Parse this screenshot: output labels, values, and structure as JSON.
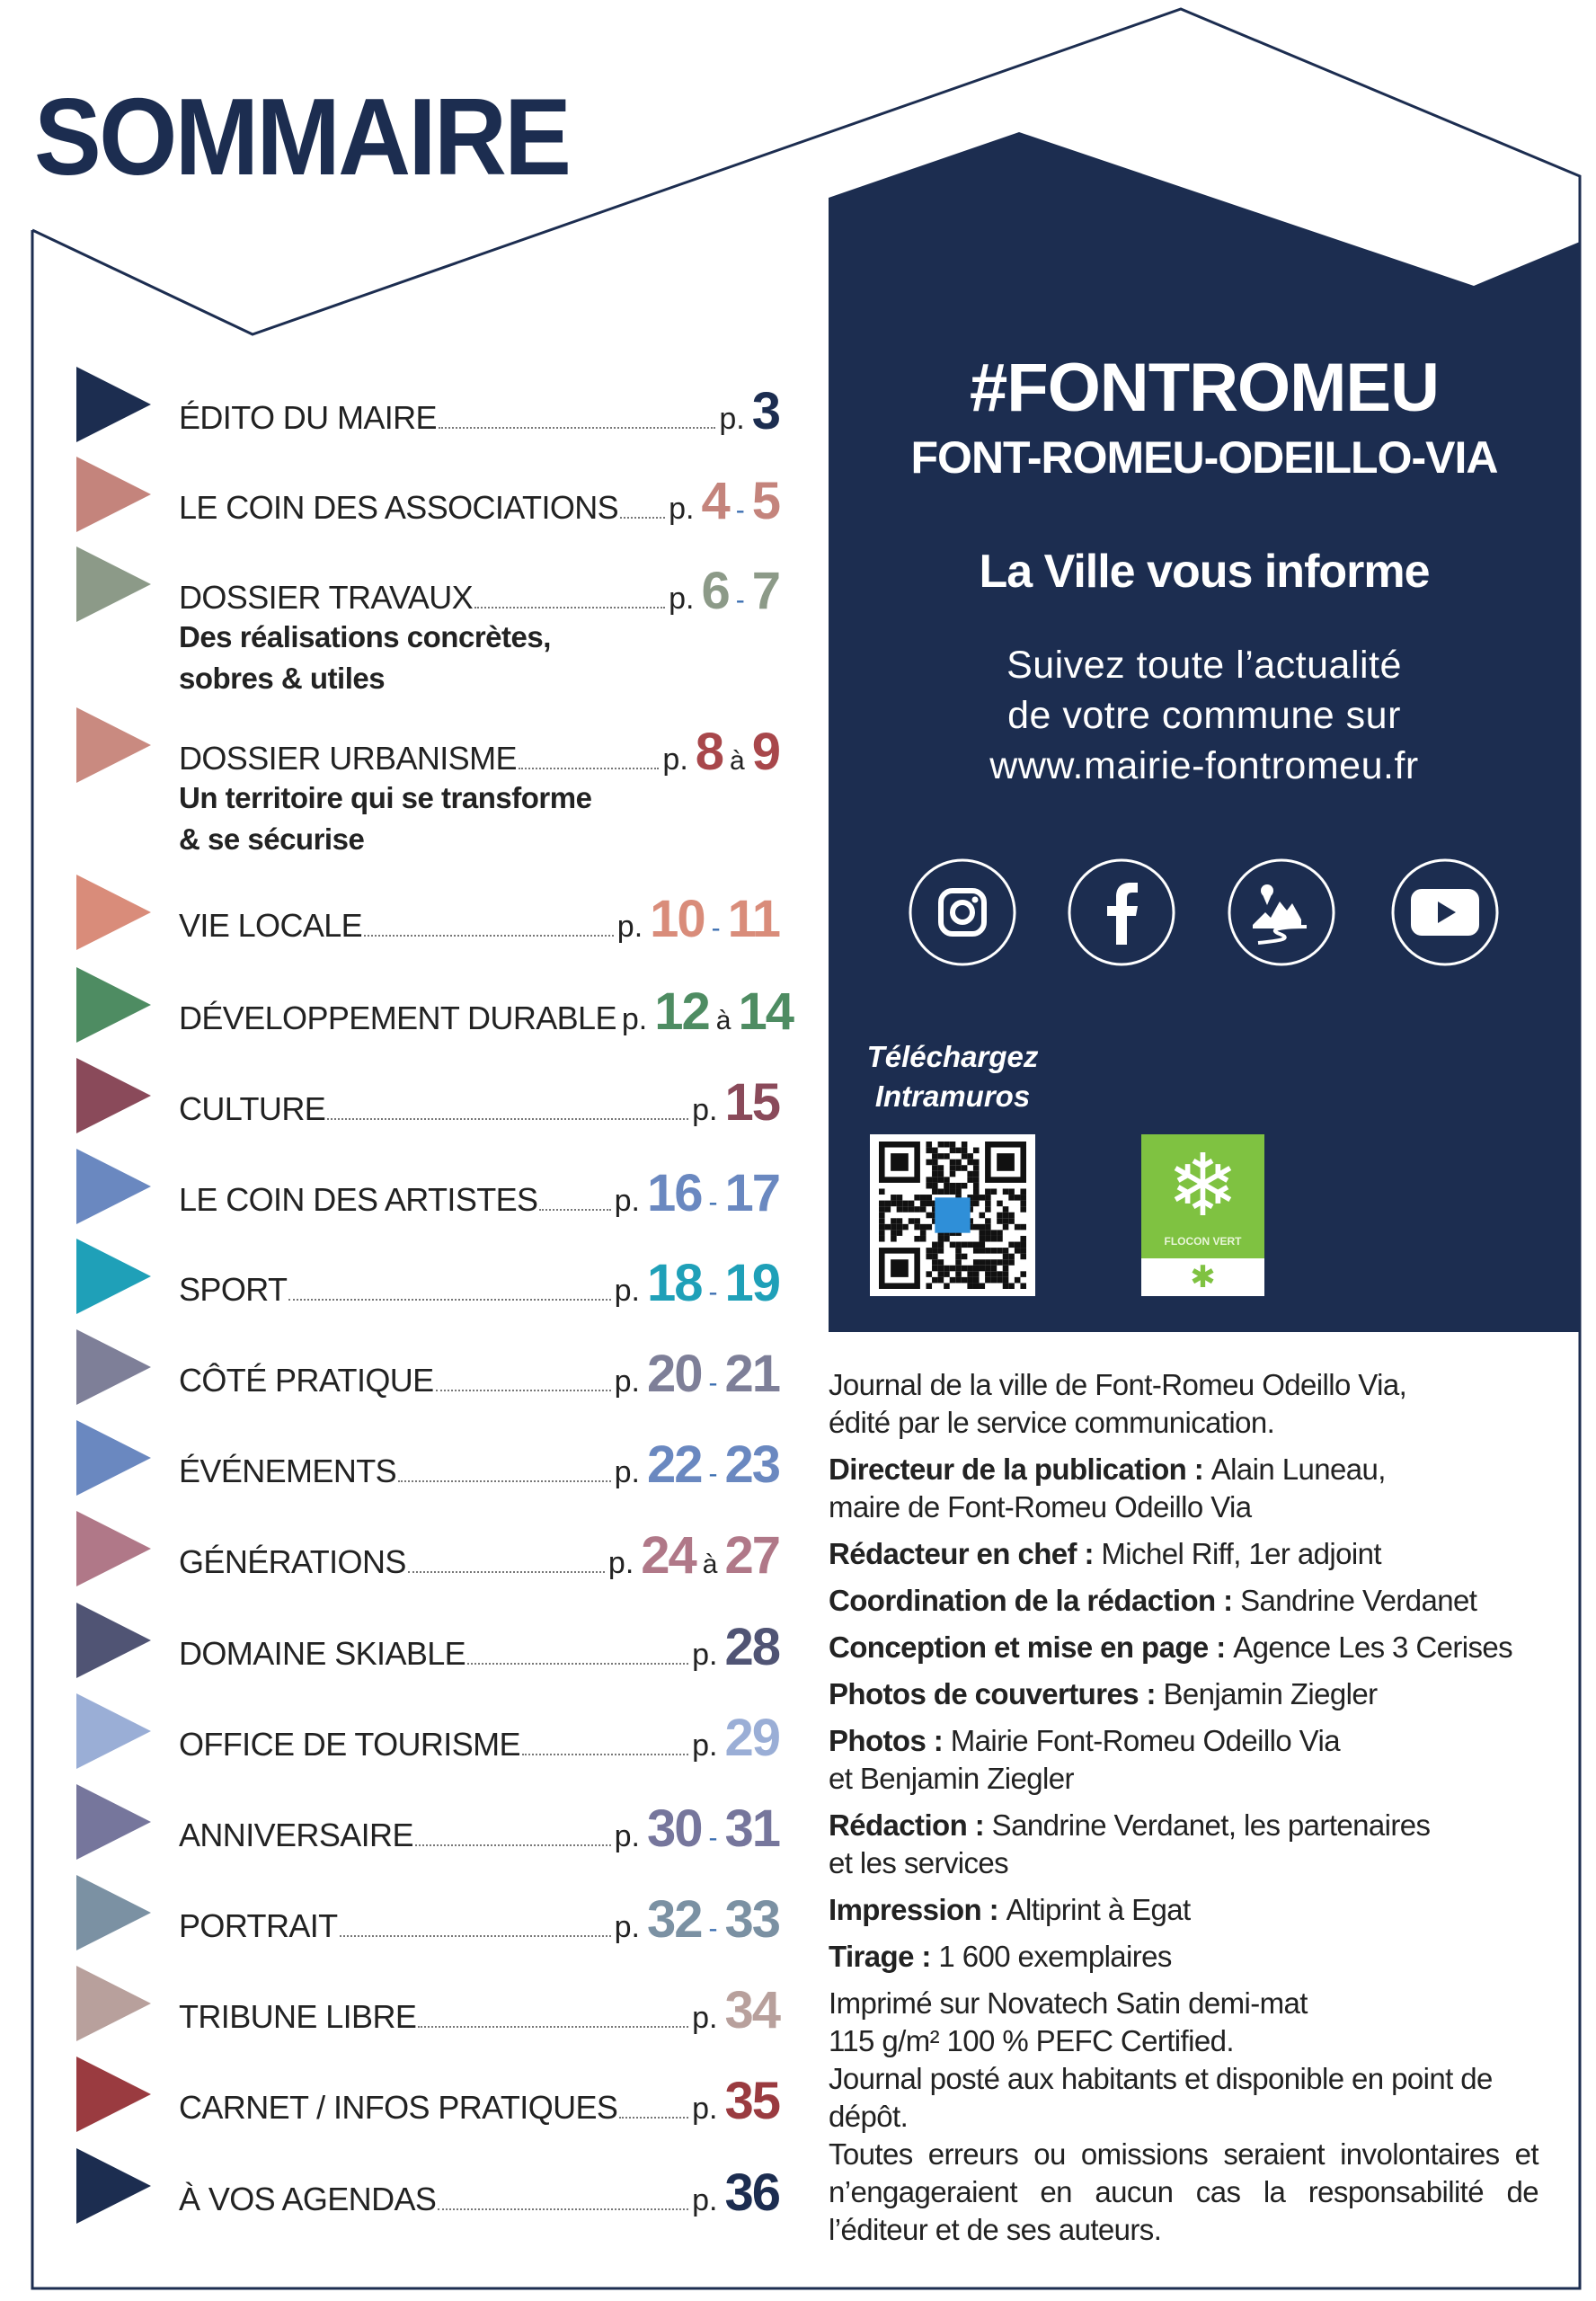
{
  "header": {
    "title": "SOMMAIRE"
  },
  "colors": {
    "navy": "#1c2d50",
    "separator": "#3a6db0",
    "qr_accent": "#2f8fd8",
    "flocon_green": "#7fc241"
  },
  "toc": [
    {
      "label": "ÉDITO DU MAIRE",
      "p": "p.",
      "pages": [
        "3"
      ],
      "sep": "",
      "color": "#1c2d50",
      "num_color": "#1c2d50"
    },
    {
      "label": "LE COIN DES ASSOCIATIONS",
      "p": "p.",
      "pages": [
        "4",
        "5"
      ],
      "sep": "-",
      "color": "#c4847c",
      "num_color": "#c4847c"
    },
    {
      "label": "DOSSIER TRAVAUX",
      "p": "p.",
      "pages": [
        "6",
        "7"
      ],
      "sep": "-",
      "color": "#8c9a88",
      "num_color": "#8c9a88",
      "subtitle": "Des réalisations concrètes,\nsobres & utiles"
    },
    {
      "label": "DOSSIER URBANISME",
      "p": "p.",
      "pages": [
        "8",
        "9"
      ],
      "sep": "à",
      "color": "#c98a80",
      "num_color": "#a8474b",
      "subtitle": "Un territoire qui se transforme\n& se sécurise"
    },
    {
      "label": "VIE LOCALE",
      "p": "p.",
      "pages": [
        "10",
        "11"
      ],
      "sep": "-",
      "color": "#d98c7a",
      "num_color": "#d98c7a"
    },
    {
      "label": "DÉVELOPPEMENT DURABLE",
      "p": "p.",
      "pages": [
        "12",
        "14"
      ],
      "sep": "à",
      "color": "#4e8c62",
      "num_color": "#4e8c62"
    },
    {
      "label": "CULTURE",
      "p": "p.",
      "pages": [
        "15"
      ],
      "sep": "",
      "color": "#8a4a5a",
      "num_color": "#8a4a5a"
    },
    {
      "label": "LE COIN DES ARTISTES",
      "p": "p.",
      "pages": [
        "16",
        "17"
      ],
      "sep": "-",
      "color": "#6a88c0",
      "num_color": "#6a88c0"
    },
    {
      "label": "SPORT",
      "p": "p.",
      "pages": [
        "18",
        "19"
      ],
      "sep": "-",
      "color": "#1fa0b8",
      "num_color": "#1fa0b8"
    },
    {
      "label": "CÔTÉ PRATIQUE",
      "p": "p.",
      "pages": [
        "20",
        "21"
      ],
      "sep": "-",
      "color": "#7e7f98",
      "num_color": "#7e7f98"
    },
    {
      "label": "ÉVÉNEMENTS",
      "p": "p.",
      "pages": [
        "22",
        "23"
      ],
      "sep": "-",
      "color": "#6a88c0",
      "num_color": "#6a88c0"
    },
    {
      "label": "GÉNÉRATIONS",
      "p": "p.",
      "pages": [
        "24",
        "27"
      ],
      "sep": "à",
      "color": "#b07888",
      "num_color": "#b07888"
    },
    {
      "label": "DOMAINE SKIABLE",
      "p": "p.",
      "pages": [
        "28"
      ],
      "sep": "",
      "color": "#505474",
      "num_color": "#505474"
    },
    {
      "label": "OFFICE DE TOURISME",
      "p": "p.",
      "pages": [
        "29"
      ],
      "sep": "",
      "color": "#9aaed6",
      "num_color": "#9aaed6"
    },
    {
      "label": "ANNIVERSAIRE",
      "p": "p.",
      "pages": [
        "30",
        "31"
      ],
      "sep": "-",
      "color": "#76769c",
      "num_color": "#76769c"
    },
    {
      "label": "PORTRAIT",
      "p": "p.",
      "pages": [
        "32",
        "33"
      ],
      "sep": "-",
      "color": "#7b91a3",
      "num_color": "#7b91a3"
    },
    {
      "label": "TRIBUNE LIBRE",
      "p": "p.",
      "pages": [
        "34"
      ],
      "sep": "",
      "color": "#b8a09c",
      "num_color": "#b8a09c"
    },
    {
      "label": "CARNET / INFOS PRATIQUES",
      "p": "p.",
      "pages": [
        "35"
      ],
      "sep": "",
      "color": "#9a3b40",
      "num_color": "#9a3b40"
    },
    {
      "label": "À VOS AGENDAS",
      "p": "p.",
      "pages": [
        "36"
      ],
      "sep": "",
      "color": "#1c2d50",
      "num_color": "#1c2d50"
    }
  ],
  "panel": {
    "hashtag": "#FONTROMEU",
    "city": "FONT-ROMEU-ODEILLO-VIA",
    "tagline": "La Ville vous informe",
    "follow": "Suivez toute l’actualité\nde votre commune sur\nwww.mairie-fontromeu.fr",
    "social": [
      "instagram-icon",
      "facebook-icon",
      "intramuros-icon",
      "youtube-icon"
    ],
    "download": "Téléchargez\nIntramuros",
    "flocon_logo": "FLOCON VERT"
  },
  "credits": [
    {
      "bold": "",
      "text": "Journal de la ville de Font-Romeu Odeillo Via,\nédité par le service communication."
    },
    {
      "bold": "Directeur de la publication : ",
      "text": "Alain Luneau,\nmaire de Font-Romeu Odeillo Via"
    },
    {
      "bold": "Rédacteur en chef : ",
      "text": "Michel Riff, 1er adjoint"
    },
    {
      "bold": "Coordination de la rédaction : ",
      "text": "Sandrine Verdanet"
    },
    {
      "bold": "Conception et mise en page : ",
      "text": "Agence Les 3 Cerises"
    },
    {
      "bold": "Photos de couvertures : ",
      "text": "Benjamin Ziegler"
    },
    {
      "bold": "Photos : ",
      "text": "Mairie Font-Romeu Odeillo Via\net Benjamin Ziegler"
    },
    {
      "bold": "Rédaction : ",
      "text": "Sandrine Verdanet, les partenaires\net les services"
    },
    {
      "bold": "Impression : ",
      "text": "Altiprint à Egat"
    },
    {
      "bold": "Tirage : ",
      "text": "1 600 exemplaires"
    },
    {
      "bold": "",
      "text": "Imprimé sur Novatech Satin demi-mat\n115 g/m² 100 % PEFC Certified."
    },
    {
      "bold": "",
      "text": "Journal posté aux habitants et disponible en point de\ndépôt."
    },
    {
      "bold": "",
      "text": "Toutes erreurs ou omissions seraient involontaires et n’engageraient en aucun cas la responsabilité de l’éditeur et de ses auteurs."
    }
  ]
}
